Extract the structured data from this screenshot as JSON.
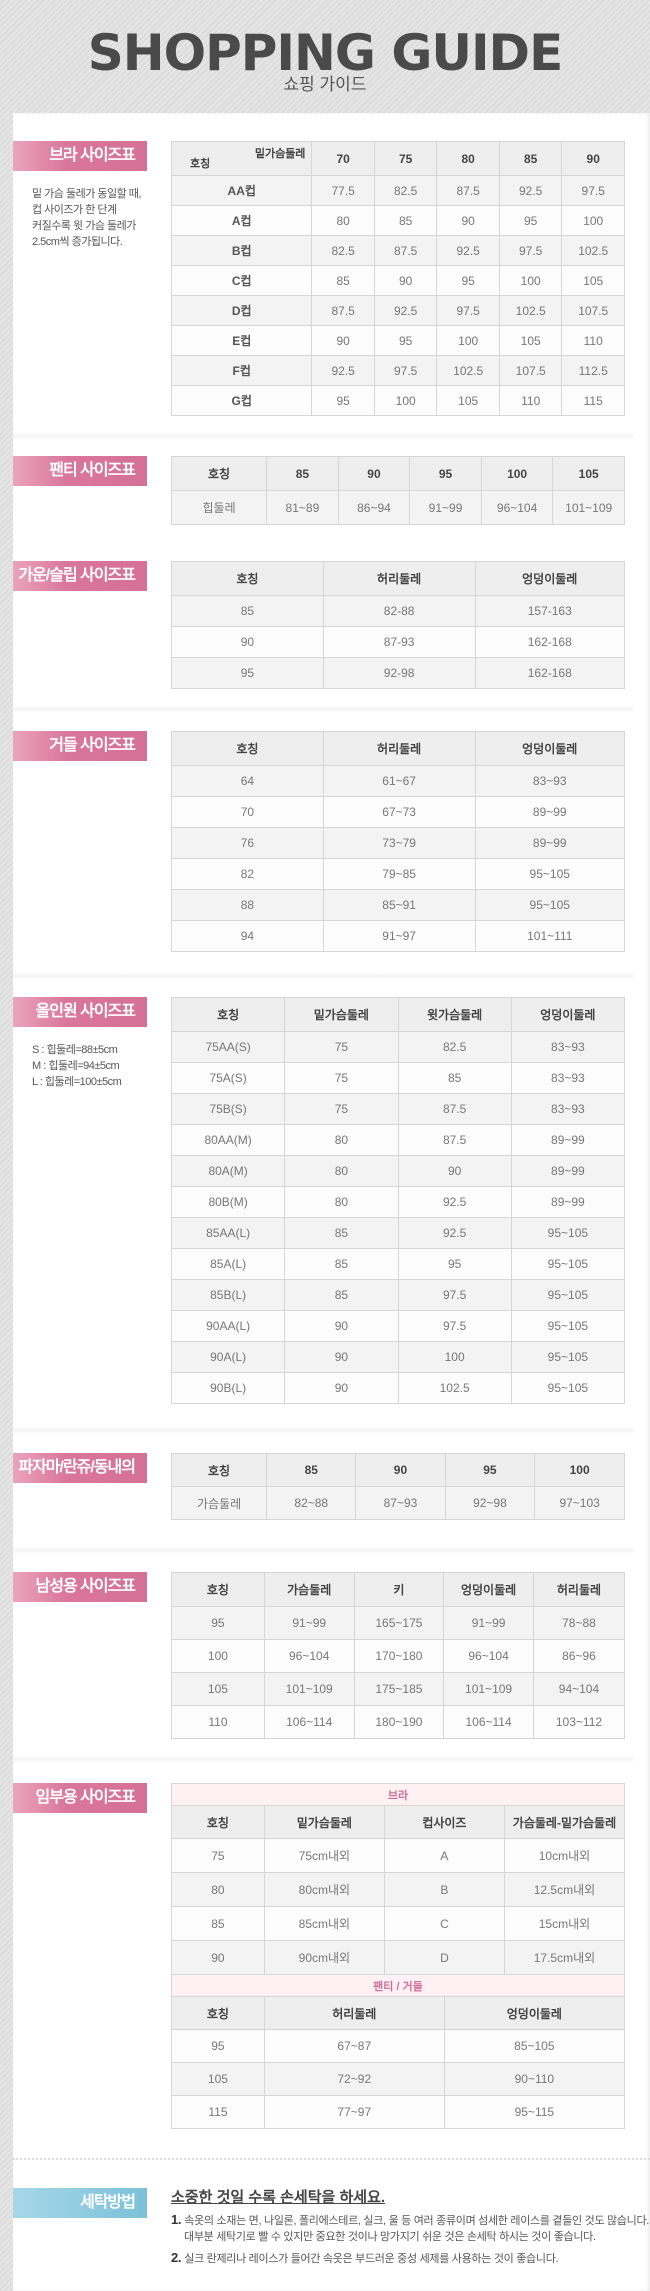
{
  "header": {
    "title": "SHOPPING GUIDE",
    "subtitle": "쇼핑 가이드"
  },
  "colors": {
    "label_pink": "#d9779a",
    "label_blue": "#7cc1d9",
    "header_bg": "#eeeeee",
    "border": "#d6d6d6"
  },
  "bra": {
    "label": "브라 사이즈표",
    "note": [
      "밑 가슴 둘레가 동일할 때,",
      "컵 사이즈가 한 단계",
      "커질수록 윗 가슴 둘레가",
      "2.5cm씩 증가됩니다."
    ],
    "corner_top": "밑가슴둘레",
    "corner_bottom": "호칭",
    "headers": [
      "70",
      "75",
      "80",
      "85",
      "90"
    ],
    "rows": [
      [
        "AA컵",
        "77.5",
        "82.5",
        "87.5",
        "92.5",
        "97.5"
      ],
      [
        "A컵",
        "80",
        "85",
        "90",
        "95",
        "100"
      ],
      [
        "B컵",
        "82.5",
        "87.5",
        "92.5",
        "97.5",
        "102.5"
      ],
      [
        "C컵",
        "85",
        "90",
        "95",
        "100",
        "105"
      ],
      [
        "D컵",
        "87.5",
        "92.5",
        "97.5",
        "102.5",
        "107.5"
      ],
      [
        "E컵",
        "90",
        "95",
        "100",
        "105",
        "110"
      ],
      [
        "F컵",
        "92.5",
        "97.5",
        "102.5",
        "107.5",
        "112.5"
      ],
      [
        "G컵",
        "95",
        "100",
        "105",
        "110",
        "115"
      ]
    ]
  },
  "panty": {
    "label": "팬티 사이즈표",
    "headers": [
      "호칭",
      "85",
      "90",
      "95",
      "100",
      "105"
    ],
    "rows": [
      [
        "힙둘레",
        "81~89",
        "86~94",
        "91~99",
        "96~104",
        "101~109"
      ]
    ]
  },
  "gown": {
    "label": "가운/슬립 사이즈표",
    "headers": [
      "호칭",
      "허리둘레",
      "엉덩이둘레"
    ],
    "rows": [
      [
        "85",
        "82-88",
        "157-163"
      ],
      [
        "90",
        "87-93",
        "162-168"
      ],
      [
        "95",
        "92-98",
        "162-168"
      ]
    ]
  },
  "girdle": {
    "label": "거들 사이즈표",
    "headers": [
      "호칭",
      "허리둘레",
      "엉덩이둘레"
    ],
    "rows": [
      [
        "64",
        "61~67",
        "83~93"
      ],
      [
        "70",
        "67~73",
        "89~99"
      ],
      [
        "76",
        "73~79",
        "89~99"
      ],
      [
        "82",
        "79~85",
        "95~105"
      ],
      [
        "88",
        "85~91",
        "95~105"
      ],
      [
        "94",
        "91~97",
        "101~111"
      ]
    ]
  },
  "allinone": {
    "label": "올인원 사이즈표",
    "note": [
      "S : 힙둘레=88±5cm",
      "M : 힙둘레=94±5cm",
      "L : 힙둘레=100±5cm"
    ],
    "headers": [
      "호칭",
      "밑가슴둘레",
      "윗가슴둘레",
      "엉덩이둘레"
    ],
    "rows": [
      [
        "75AA(S)",
        "75",
        "82.5",
        "83~93"
      ],
      [
        "75A(S)",
        "75",
        "85",
        "83~93"
      ],
      [
        "75B(S)",
        "75",
        "87.5",
        "83~93"
      ],
      [
        "80AA(M)",
        "80",
        "87.5",
        "89~99"
      ],
      [
        "80A(M)",
        "80",
        "90",
        "89~99"
      ],
      [
        "80B(M)",
        "80",
        "92.5",
        "89~99"
      ],
      [
        "85AA(L)",
        "85",
        "92.5",
        "95~105"
      ],
      [
        "85A(L)",
        "85",
        "95",
        "95~105"
      ],
      [
        "85B(L)",
        "85",
        "97.5",
        "95~105"
      ],
      [
        "90AA(L)",
        "90",
        "97.5",
        "95~105"
      ],
      [
        "90A(L)",
        "90",
        "100",
        "95~105"
      ],
      [
        "90B(L)",
        "90",
        "102.5",
        "95~105"
      ]
    ]
  },
  "pajama": {
    "label": "파자마/란쥬/동내의",
    "headers": [
      "호칭",
      "85",
      "90",
      "95",
      "100"
    ],
    "rows": [
      [
        "가슴둘레",
        "82~88",
        "87~93",
        "92~98",
        "97~103"
      ]
    ]
  },
  "men": {
    "label": "남성용 사이즈표",
    "headers": [
      "호칭",
      "가슴둘레",
      "키",
      "엉덩이둘레",
      "허리둘레"
    ],
    "rows": [
      [
        "95",
        "91~99",
        "165~175",
        "91~99",
        "78~88"
      ],
      [
        "100",
        "96~104",
        "170~180",
        "96~104",
        "86~96"
      ],
      [
        "105",
        "101~109",
        "175~185",
        "101~109",
        "94~104"
      ],
      [
        "110",
        "106~114",
        "180~190",
        "106~114",
        "103~112"
      ]
    ]
  },
  "maternity": {
    "label": "임부용 사이즈표",
    "bra": {
      "caption": "브라",
      "headers": [
        "호칭",
        "밑가슴둘레",
        "컵사이즈",
        "가슴둘레-밑가슴둘레"
      ],
      "rows": [
        [
          "75",
          "75cm내외",
          "A",
          "10cm내외"
        ],
        [
          "80",
          "80cm내외",
          "B",
          "12.5cm내외"
        ],
        [
          "85",
          "85cm내외",
          "C",
          "15cm내외"
        ],
        [
          "90",
          "90cm내외",
          "D",
          "17.5cm내외"
        ]
      ]
    },
    "panty": {
      "caption": "팬티 / 거들",
      "headers": [
        "호칭",
        "허리둘레",
        "엉덩이둘레"
      ],
      "rows": [
        [
          "95",
          "67~87",
          "85~105"
        ],
        [
          "105",
          "72~92",
          "90~110"
        ],
        [
          "115",
          "77~97",
          "95~115"
        ]
      ]
    }
  },
  "wash": {
    "label": "세탁방법",
    "title": "소중한 것일 수록 손세탁을 하세요.",
    "items": [
      {
        "num": "1.",
        "lines": [
          "속옷의 소재는 면, 나일론, 폴리에스테르, 실크, 울 등 여러 종류이며 섬세한 레이스를 곁들인 것도 많습니다.",
          "대부분 세탁기로 빨 수 있지만 중요한 것이나 망가지기 쉬운 것은 손세탁 하시는 것이 좋습니다."
        ]
      },
      {
        "num": "2.",
        "lines": [
          "실크 란제리나 레이스가 들어간 속옷은 부드러운 중성 세제를 사용하는 것이 좋습니다."
        ]
      }
    ]
  }
}
